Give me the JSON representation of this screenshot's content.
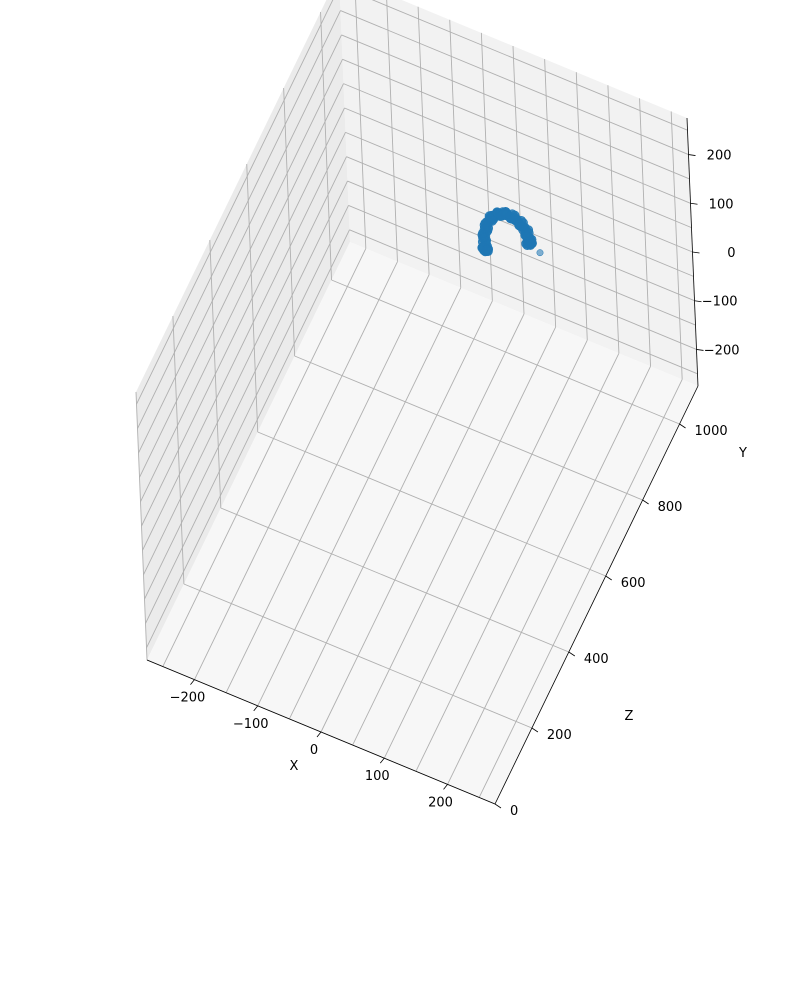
{
  "chart_data": {
    "type": "scatter",
    "projection": "3d",
    "title": "",
    "xlabel": "X",
    "ylabel": "Y",
    "zlabel": "Z",
    "x_ticks": [
      "−200",
      "−100",
      "0",
      "100",
      "200"
    ],
    "y_ticks": [
      "−200",
      "−100",
      "0",
      "100",
      "200"
    ],
    "z_ticks": [
      "0",
      "200",
      "400",
      "600",
      "800",
      "1000"
    ],
    "grid": true,
    "pane_colors": {
      "back": "#f2f2f2",
      "side": "#ebebeb",
      "floor": "#f7f7f7"
    },
    "colors": {
      "marker": "#1f77b4",
      "grid": "#b0b0b0",
      "axis": "#000000"
    },
    "series": [
      {
        "shape": "arc",
        "points": [
          {
            "x": -26,
            "y": -78,
            "z": 1000
          },
          {
            "x": -27,
            "y": -62,
            "z": 1000
          },
          {
            "x": -26,
            "y": -46,
            "z": 1000
          },
          {
            "x": -23,
            "y": -31,
            "z": 1000
          },
          {
            "x": -19,
            "y": -17,
            "z": 1000
          },
          {
            "x": -13,
            "y": -5,
            "z": 1000
          },
          {
            "x": -6,
            "y": 4,
            "z": 1000
          },
          {
            "x": 2,
            "y": 10,
            "z": 1000
          },
          {
            "x": 10,
            "y": 13,
            "z": 1000
          },
          {
            "x": 18,
            "y": 13,
            "z": 1000
          },
          {
            "x": 26,
            "y": 10,
            "z": 1000
          },
          {
            "x": 33,
            "y": 5,
            "z": 1000
          },
          {
            "x": 39,
            "y": -2,
            "z": 1000
          },
          {
            "x": 43,
            "y": -12,
            "z": 1000
          },
          {
            "x": 46,
            "y": -22,
            "z": 1000
          },
          {
            "x": 45,
            "y": -28,
            "z": 1000
          }
        ]
      },
      {
        "shape": "stray",
        "points": [
          {
            "x": 62,
            "y": -38,
            "z": 1000
          }
        ]
      }
    ]
  }
}
